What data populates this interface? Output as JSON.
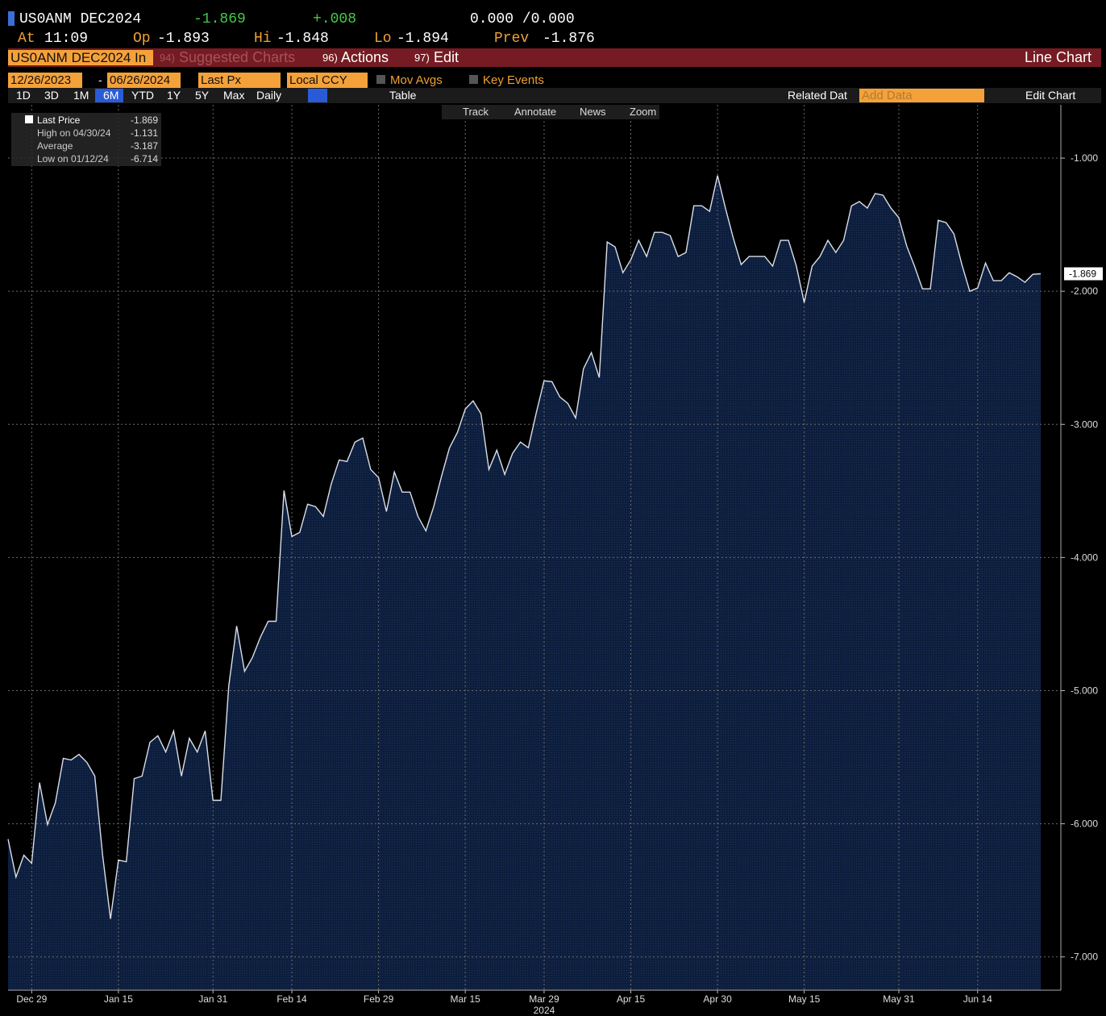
{
  "header": {
    "ticker": "US0ANM DEC2024",
    "last": "-1.869",
    "change": "+.008",
    "bid_ask": "0.000 /0.000",
    "quote": [
      {
        "label": "At",
        "value": "11:09"
      },
      {
        "label": "Op",
        "value": "-1.893"
      },
      {
        "label": "Hi",
        "value": "-1.848"
      },
      {
        "label": "Lo",
        "value": "-1.894"
      },
      {
        "label": "Prev",
        "value": "-1.876"
      }
    ]
  },
  "menu": {
    "security": "US0ANM DEC2024 In",
    "items": [
      {
        "code": "94)",
        "label": "Suggested Charts"
      },
      {
        "code": "96)",
        "label": "Actions"
      },
      {
        "code": "97)",
        "label": "Edit"
      }
    ],
    "chart_type": "Line Chart"
  },
  "controls": {
    "start": "12/26/2023",
    "separator": "-",
    "end": "06/26/2024",
    "field": "Last Px",
    "currency": "Local CCY",
    "checkboxes": [
      "Mov Avgs",
      "Key Events"
    ]
  },
  "toolbar": {
    "periods": [
      "1D",
      "3D",
      "1M",
      "6M",
      "YTD",
      "1Y",
      "5Y",
      "Max"
    ],
    "selected": "6M",
    "frequency": "Daily",
    "table": "Table",
    "related": "Related Dat",
    "add_data": "Add Data",
    "edit_chart": "Edit Chart"
  },
  "tools": [
    "Track",
    "Annotate",
    "News",
    "Zoom"
  ],
  "chart_data": {
    "type": "area",
    "color": "#0d1e3d",
    "line_color": "#d9dee8",
    "legend": [
      {
        "label": "Last Price",
        "value": "-1.869"
      },
      {
        "label": "High on 04/30/24",
        "value": "-1.131"
      },
      {
        "label": "Average",
        "value": "-3.187"
      },
      {
        "label": "Low on 01/12/24",
        "value": "-6.714"
      }
    ],
    "last_label": "-1.869",
    "series": [
      {
        "name": "Last Price",
        "values": [
          -6.115,
          -6.4,
          -6.236,
          -6.297,
          -5.691,
          -6.006,
          -5.842,
          -5.509,
          -5.521,
          -5.479,
          -5.539,
          -5.642,
          -6.236,
          -6.714,
          -6.273,
          -6.285,
          -5.661,
          -5.642,
          -5.388,
          -5.339,
          -5.461,
          -5.303,
          -5.642,
          -5.358,
          -5.461,
          -5.303,
          -5.824,
          -5.824,
          -4.964,
          -4.515,
          -4.855,
          -4.752,
          -4.6,
          -4.479,
          -4.479,
          -3.497,
          -3.842,
          -3.812,
          -3.6,
          -3.618,
          -3.691,
          -3.448,
          -3.267,
          -3.279,
          -3.133,
          -3.103,
          -3.339,
          -3.4,
          -3.655,
          -3.358,
          -3.509,
          -3.509,
          -3.691,
          -3.8,
          -3.618,
          -3.388,
          -3.176,
          -3.061,
          -2.885,
          -2.824,
          -2.921,
          -3.339,
          -3.194,
          -3.376,
          -3.218,
          -3.133,
          -3.176,
          -2.915,
          -2.673,
          -2.679,
          -2.794,
          -2.842,
          -2.952,
          -2.582,
          -2.461,
          -2.648,
          -1.63,
          -1.667,
          -1.861,
          -1.764,
          -1.618,
          -1.739,
          -1.558,
          -1.558,
          -1.582,
          -1.739,
          -1.709,
          -1.358,
          -1.358,
          -1.4,
          -1.131,
          -1.376,
          -1.6,
          -1.8,
          -1.739,
          -1.739,
          -1.739,
          -1.812,
          -1.618,
          -1.618,
          -1.812,
          -2.085,
          -1.812,
          -1.739,
          -1.618,
          -1.709,
          -1.618,
          -1.358,
          -1.327,
          -1.376,
          -1.267,
          -1.279,
          -1.376,
          -1.448,
          -1.661,
          -1.812,
          -1.982,
          -1.982,
          -1.467,
          -1.485,
          -1.57,
          -1.8,
          -2.0,
          -1.976,
          -1.788,
          -1.921,
          -1.921,
          -1.861,
          -1.891,
          -1.933,
          -1.873,
          -1.869
        ]
      }
    ],
    "ylim": [
      -7.25,
      -0.6
    ],
    "yticks": [
      {
        "value": -1,
        "label": "-1.000"
      },
      {
        "value": -2,
        "label": "-2.000"
      },
      {
        "value": -3,
        "label": "-3.000"
      },
      {
        "value": -4,
        "label": "-4.000"
      },
      {
        "value": -5,
        "label": "-5.000"
      },
      {
        "value": -6,
        "label": "-6.000"
      },
      {
        "value": -7,
        "label": "-7.000"
      }
    ],
    "xticks": [
      {
        "value": "2023-12-29",
        "label": "Dec 29"
      },
      {
        "value": "2024-01-15",
        "label": "Jan 15"
      },
      {
        "value": "2024-01-31",
        "label": "Jan 31"
      },
      {
        "value": "2024-02-14",
        "label": "Feb 14"
      },
      {
        "value": "2024-02-29",
        "label": "Feb 29"
      },
      {
        "value": "2024-03-15",
        "label": "Mar 15"
      },
      {
        "value": "2024-03-29",
        "label": "Mar 29"
      },
      {
        "value": "2024-04-15",
        "label": "Apr 15"
      },
      {
        "value": "2024-04-30",
        "label": "Apr 30"
      },
      {
        "value": "2024-05-15",
        "label": "May 15"
      },
      {
        "value": "2024-05-31",
        "label": "May 31"
      },
      {
        "value": "2024-06-14",
        "label": "Jun 14"
      }
    ],
    "year_label": "2024",
    "grid": true
  }
}
